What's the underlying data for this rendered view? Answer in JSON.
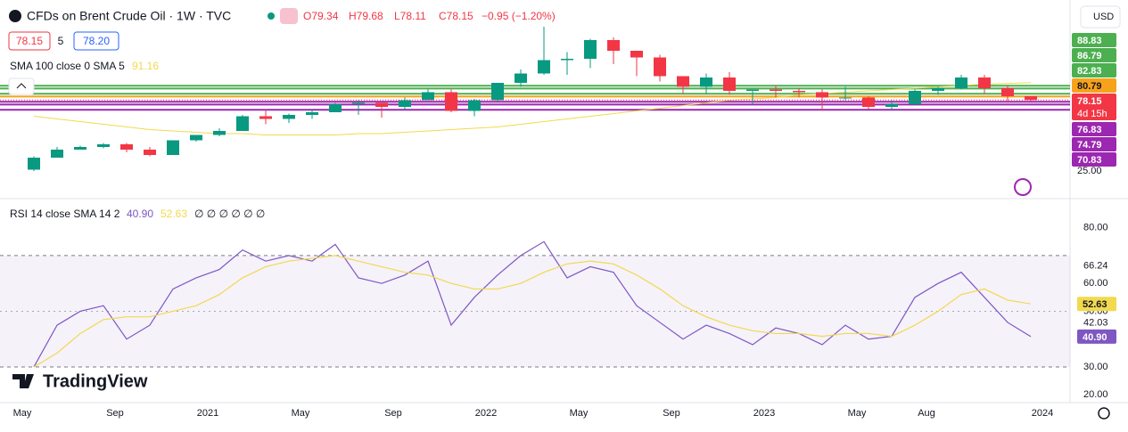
{
  "header": {
    "symbol": "CFDs on Brent Crude Oil · 1W · TVC",
    "ohlc": [
      "O79.34",
      "H79.68",
      "L78.11",
      "C78.15"
    ],
    "change": "−0.95 (−1.20%)",
    "bid": "78.15",
    "spread": "5",
    "ask": "78.20",
    "currency": "USD",
    "brand": "TradingView"
  },
  "chart_data": [
    {
      "type": "candlestick",
      "x": [
        "2020-05",
        "2020-06",
        "2020-07",
        "2020-08",
        "2020-09",
        "2020-10",
        "2020-11",
        "2020-12",
        "2021-01",
        "2021-02",
        "2021-03",
        "2021-04",
        "2021-05",
        "2021-06",
        "2021-07",
        "2021-08",
        "2021-09",
        "2021-10",
        "2021-11",
        "2021-12",
        "2022-01",
        "2022-02",
        "2022-03",
        "2022-04",
        "2022-05",
        "2022-06",
        "2022-07",
        "2022-08",
        "2022-09",
        "2022-10",
        "2022-11",
        "2022-12",
        "2023-01",
        "2023-02",
        "2023-03",
        "2023-04",
        "2023-05",
        "2023-06",
        "2023-07",
        "2023-08",
        "2023-09",
        "2023-10",
        "2023-11",
        "2023-12"
      ],
      "open": [
        26,
        35,
        41,
        43,
        45,
        41,
        37,
        48,
        52,
        55,
        66,
        64,
        67,
        69,
        75,
        76,
        73,
        78,
        84,
        70,
        78,
        91,
        98,
        108,
        109,
        123,
        115,
        110,
        96,
        88,
        95,
        85,
        86,
        85,
        84,
        80,
        80,
        73,
        75,
        85,
        87,
        95,
        87,
        81
      ],
      "high": [
        36,
        43,
        44,
        46,
        46,
        43,
        48,
        52,
        57,
        67,
        71,
        68,
        71,
        76,
        78,
        76,
        80,
        86,
        86,
        79,
        91,
        101,
        133,
        114,
        124,
        125,
        115,
        112,
        96,
        98,
        99,
        86,
        89,
        87,
        86,
        88,
        81,
        78,
        86,
        88,
        97,
        97,
        89,
        81
      ],
      "low": [
        25,
        35,
        41,
        42,
        39,
        36,
        37,
        47,
        51,
        55,
        60,
        61,
        64,
        69,
        67,
        65,
        71,
        78,
        69,
        66,
        77,
        88,
        97,
        97,
        102,
        105,
        96,
        92,
        83,
        83,
        82,
        75,
        80,
        80,
        70,
        78,
        71,
        71,
        74,
        82,
        86,
        83,
        76,
        77
      ],
      "close": [
        35,
        41,
        43,
        45,
        41,
        37,
        48,
        52,
        55,
        66,
        64,
        67,
        69,
        75,
        76,
        73,
        78,
        84,
        70,
        78,
        91,
        98,
        108,
        109,
        123,
        115,
        110,
        96,
        88,
        95,
        85,
        86,
        85,
        84,
        80,
        80,
        73,
        75,
        85,
        87,
        95,
        87,
        81,
        78.15
      ],
      "up_color": "#089981",
      "down_color": "#f23645",
      "ylim": [
        5,
        153
      ],
      "yticks": [
        {
          "value": 25,
          "label": "25.00"
        }
      ],
      "xticks": [
        {
          "value": "2020-05",
          "label": "May"
        },
        {
          "value": "2020-09",
          "label": "Sep"
        },
        {
          "value": "2021-01",
          "label": "2021"
        },
        {
          "value": "2021-05",
          "label": "May"
        },
        {
          "value": "2021-09",
          "label": "Sep"
        },
        {
          "value": "2022-01",
          "label": "2022"
        },
        {
          "value": "2022-05",
          "label": "May"
        },
        {
          "value": "2022-09",
          "label": "Sep"
        },
        {
          "value": "2023-01",
          "label": "2023"
        },
        {
          "value": "2023-05",
          "label": "May"
        },
        {
          "value": "2023-08",
          "label": "Aug"
        },
        {
          "value": "2024-01",
          "label": "2024"
        }
      ],
      "overlay": {
        "title": "SMA 100 close 0 SMA 5",
        "legend_value": 91.16,
        "color": "#f2d94e",
        "values": [
          66,
          64,
          62,
          60,
          58,
          56,
          55,
          54,
          53,
          53,
          52,
          52,
          52,
          52,
          53,
          53,
          54,
          55,
          56,
          57,
          58,
          60,
          62,
          64,
          66,
          68,
          70,
          72,
          74,
          76,
          78,
          79,
          80,
          82,
          83,
          84,
          85,
          86,
          87,
          88,
          89,
          90,
          90.5,
          91.16
        ]
      },
      "levels": [
        {
          "value": 88.83,
          "color": "#4caf50"
        },
        {
          "value": 86.79,
          "color": "#4caf50"
        },
        {
          "value": 82.83,
          "color": "#4caf50"
        },
        {
          "value": 80.79,
          "color": "#f7a21b"
        },
        {
          "value": 76.83,
          "color": "#9c27b0"
        },
        {
          "value": 74.79,
          "color": "#9c27b0"
        },
        {
          "value": 70.83,
          "color": "#9c27b0"
        }
      ],
      "last": {
        "value": 78.15,
        "countdown": "4d 15h",
        "color": "#f23645"
      }
    },
    {
      "type": "line",
      "title": "RSI 14 close SMA 14 2",
      "extra": "∅ ∅ ∅ ∅ ∅ ∅",
      "x": [
        "2020-05",
        "2020-06",
        "2020-07",
        "2020-08",
        "2020-09",
        "2020-10",
        "2020-11",
        "2020-12",
        "2021-01",
        "2021-02",
        "2021-03",
        "2021-04",
        "2021-05",
        "2021-06",
        "2021-07",
        "2021-08",
        "2021-09",
        "2021-10",
        "2021-11",
        "2021-12",
        "2022-01",
        "2022-02",
        "2022-03",
        "2022-04",
        "2022-05",
        "2022-06",
        "2022-07",
        "2022-08",
        "2022-09",
        "2022-10",
        "2022-11",
        "2022-12",
        "2023-01",
        "2023-02",
        "2023-03",
        "2023-04",
        "2023-05",
        "2023-06",
        "2023-07",
        "2023-08",
        "2023-09",
        "2023-10",
        "2023-11",
        "2023-12"
      ],
      "series": [
        {
          "color": "#7e57c2",
          "legend_label": "40.90",
          "values": [
            30,
            45,
            50,
            52,
            40,
            45,
            58,
            62,
            65,
            72,
            68,
            70,
            68,
            74,
            62,
            60,
            63,
            68,
            45,
            55,
            63,
            70,
            75,
            62,
            66,
            64,
            52,
            46,
            40,
            45,
            42,
            38,
            44,
            42,
            38,
            45,
            40,
            41,
            55,
            60,
            64,
            55,
            46,
            40.9
          ]
        },
        {
          "color": "#f2d94e",
          "legend_label": "52.63",
          "values": [
            30,
            35,
            42,
            47,
            48,
            48,
            50,
            52,
            56,
            62,
            66,
            68,
            69,
            70,
            68,
            66,
            64,
            63,
            60,
            58,
            58,
            60,
            64,
            67,
            68,
            67,
            63,
            58,
            52,
            48,
            45,
            43,
            42,
            42,
            41,
            42,
            42,
            41,
            45,
            50,
            56,
            58,
            54,
            52.63
          ]
        }
      ],
      "ylim": [
        17.2,
        89.8
      ],
      "yticks": [
        {
          "value": 80,
          "label": "80.00"
        },
        {
          "value": 60,
          "label": "60.00"
        },
        {
          "value": 50,
          "label": "50.00"
        },
        {
          "value": 30,
          "label": "30.00"
        },
        {
          "value": 20,
          "label": "20.00"
        }
      ],
      "band": [
        30,
        70
      ],
      "midline": 50,
      "markers": [
        66.24,
        42.03
      ]
    }
  ]
}
